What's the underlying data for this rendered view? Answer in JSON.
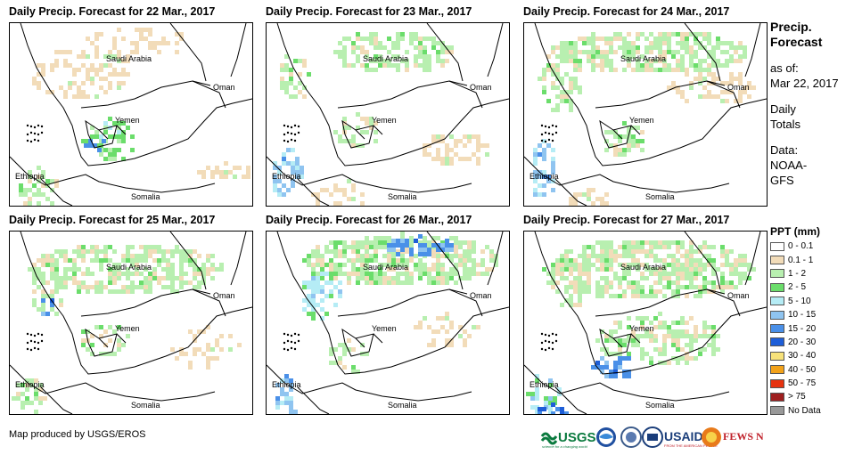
{
  "panels": [
    {
      "title": "Daily Precip. Forecast for 22 Mar., 2017"
    },
    {
      "title": "Daily Precip. Forecast for 23 Mar., 2017"
    },
    {
      "title": "Daily Precip. Forecast for 24 Mar., 2017"
    },
    {
      "title": "Daily Precip. Forecast for 25 Mar., 2017"
    },
    {
      "title": "Daily Precip. Forecast for 26 Mar., 2017"
    },
    {
      "title": "Daily Precip. Forecast for 27 Mar., 2017"
    }
  ],
  "map_labels": {
    "saudi": "Saudi Arabia",
    "oman": "Oman",
    "yemen": "Yemen",
    "ethiopia": "Ethiopia",
    "somalia": "Somalia"
  },
  "side": {
    "title_line1": "Precip.",
    "title_line2": "Forecast",
    "asof_line1": "as of:",
    "asof_line2": "Mar 22, 2017",
    "daily_line1": "Daily",
    "daily_line2": "Totals",
    "data_line1": "Data:",
    "data_line2": "NOAA-",
    "data_line3": "GFS"
  },
  "legend": {
    "title": "PPT (mm)",
    "items": [
      {
        "label": "0 - 0.1",
        "color": "#ffffff"
      },
      {
        "label": "0.1 - 1",
        "color": "#f2dcb9"
      },
      {
        "label": "1 - 2",
        "color": "#b8efb0"
      },
      {
        "label": "2 - 5",
        "color": "#6bdd6b"
      },
      {
        "label": "5 - 10",
        "color": "#b5ecf5"
      },
      {
        "label": "10 - 15",
        "color": "#8fc4f0"
      },
      {
        "label": "15 - 20",
        "color": "#4a90e8"
      },
      {
        "label": "20 - 30",
        "color": "#1e5ed8"
      },
      {
        "label": "30 - 40",
        "color": "#f7e27a"
      },
      {
        "label": "40 - 50",
        "color": "#f2a21a"
      },
      {
        "label": "50 - 75",
        "color": "#e6320f"
      },
      {
        "label": "> 75",
        "color": "#9e1f1f"
      },
      {
        "label": "No Data",
        "color": "#999999"
      }
    ]
  },
  "credit": "Map produced by USGS/EROS",
  "logos": {
    "usgs": "USGS",
    "usgs_tag": "science for a changing world",
    "usaid": "USAID",
    "usaid_tag": "FROM THE AMERICAN PEOPLE",
    "fews": "FEWS NET"
  }
}
